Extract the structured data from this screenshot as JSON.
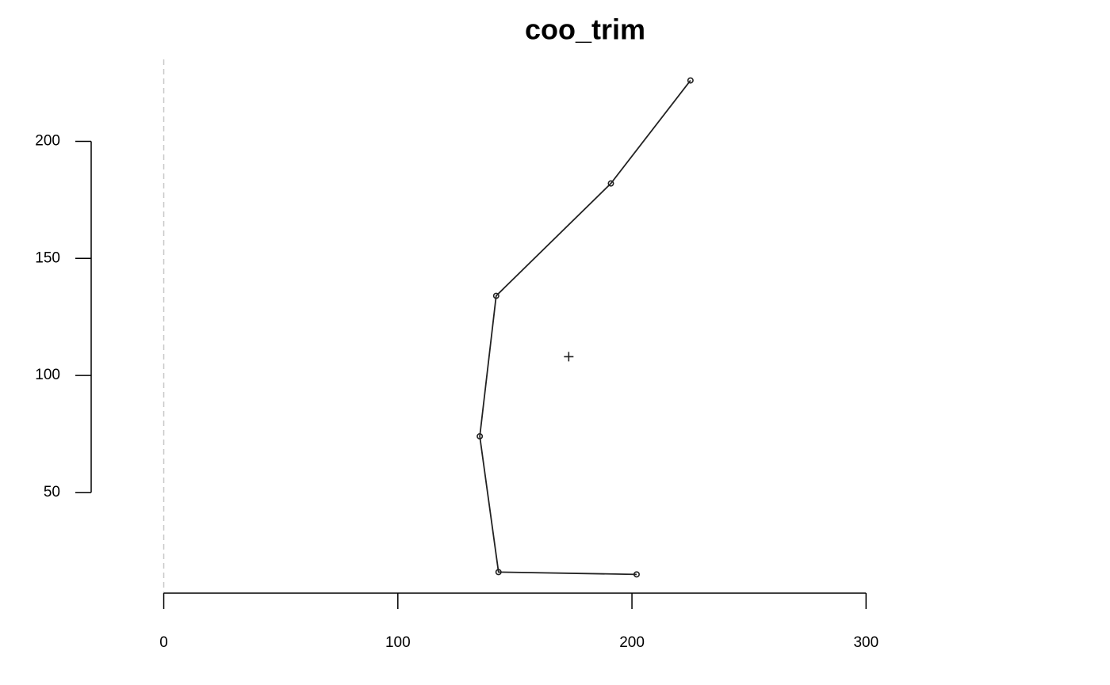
{
  "chart_data": {
    "type": "line",
    "title": "coo_trim",
    "x": [
      225,
      191,
      142,
      135,
      143,
      202
    ],
    "values": [
      226,
      182,
      134,
      74,
      16,
      15
    ],
    "color": "#222222",
    "centroid": [
      173,
      108
    ],
    "vline": 0,
    "xlim": [
      -31,
      370
    ],
    "ylim": [
      7,
      235
    ],
    "xticks": [
      0,
      100,
      200,
      300
    ],
    "yticks": [
      50,
      100,
      150,
      200
    ],
    "grid": false
  }
}
